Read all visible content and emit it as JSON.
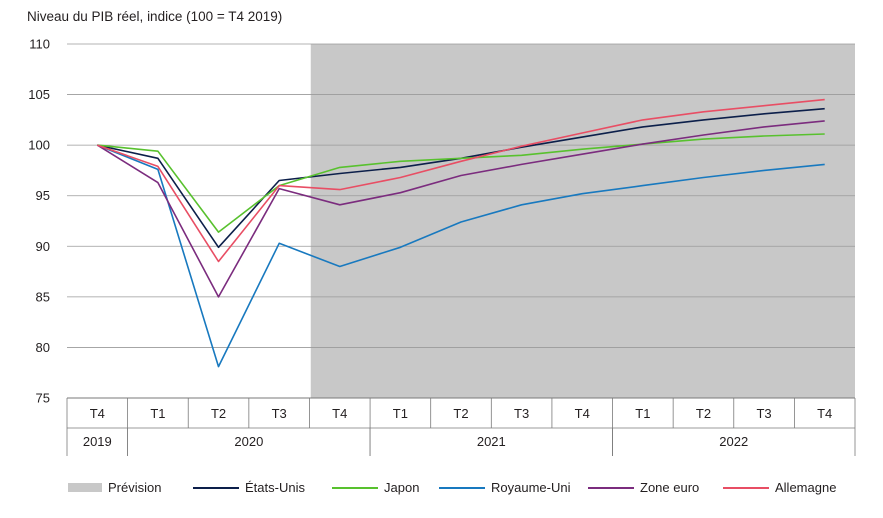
{
  "chart_data": {
    "type": "line",
    "subtitle": "Niveau du PIB réel, indice (100 = T4 2019)",
    "ylim": [
      75,
      110
    ],
    "yticks": [
      "75",
      "80",
      "85",
      "90",
      "95",
      "100",
      "105",
      "110"
    ],
    "quarters": [
      "T4",
      "T1",
      "T2",
      "T3",
      "T4",
      "T1",
      "T2",
      "T3",
      "T4",
      "T1",
      "T2",
      "T3",
      "T4"
    ],
    "years": [
      {
        "label": "2019",
        "span": [
          0,
          0
        ]
      },
      {
        "label": "2020",
        "span": [
          1,
          4
        ]
      },
      {
        "label": "2021",
        "span": [
          5,
          8
        ]
      },
      {
        "label": "2022",
        "span": [
          9,
          12
        ]
      }
    ],
    "forecast_start_index": 4,
    "forecast_label": "Prévision",
    "forecast_color": "#c8c8c8",
    "series": [
      {
        "name": "États-Unis",
        "color": "#0c1f4a",
        "values": [
          100,
          98.7,
          89.9,
          96.5,
          97.2,
          97.8,
          98.7,
          99.8,
          100.8,
          101.8,
          102.5,
          103.1,
          103.6
        ]
      },
      {
        "name": "Japon",
        "color": "#58c12e",
        "values": [
          100,
          99.4,
          91.4,
          96.0,
          97.8,
          98.4,
          98.7,
          99.0,
          99.6,
          100.1,
          100.6,
          100.9,
          101.1
        ]
      },
      {
        "name": "Royaume-Uni",
        "color": "#1879bf",
        "values": [
          100,
          97.6,
          78.1,
          90.3,
          88.0,
          89.9,
          92.4,
          94.1,
          95.2,
          96.0,
          96.8,
          97.5,
          98.1
        ]
      },
      {
        "name": "Zone euro",
        "color": "#7b2c7e",
        "values": [
          100,
          96.3,
          85.0,
          95.7,
          94.1,
          95.3,
          97.0,
          98.1,
          99.1,
          100.1,
          101.0,
          101.8,
          102.4
        ]
      },
      {
        "name": "Allemagne",
        "color": "#e84e64",
        "values": [
          100,
          97.9,
          88.5,
          96.0,
          95.6,
          96.8,
          98.4,
          99.9,
          101.2,
          102.5,
          103.3,
          103.9,
          104.5
        ]
      }
    ]
  }
}
